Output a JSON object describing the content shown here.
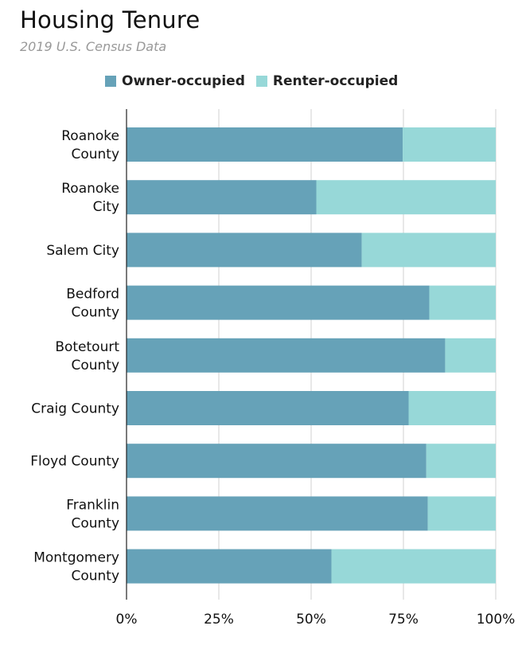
{
  "title": "Housing Tenure",
  "subtitle": "2019 U.S. Census Data",
  "colors": {
    "owner": "#66a2b8",
    "renter": "#97d8d8",
    "grid": "#d0d0d0",
    "axis": "#222222"
  },
  "chart_data": {
    "type": "bar",
    "orientation": "horizontal",
    "stacked": true,
    "title": "Housing Tenure",
    "subtitle": "2019 U.S. Census Data",
    "categories": [
      [
        "Roanoke",
        "County"
      ],
      [
        "Roanoke",
        "City"
      ],
      [
        "Salem City"
      ],
      [
        "Bedford",
        "County"
      ],
      [
        "Botetourt",
        "County"
      ],
      [
        "Craig County"
      ],
      [
        "Floyd County"
      ],
      [
        "Franklin",
        "County"
      ],
      [
        "Montgomery",
        "County"
      ]
    ],
    "series": [
      {
        "name": "Owner-occupied",
        "color": "#66a2b8",
        "values": [
          74.8,
          51.4,
          63.7,
          82.0,
          86.3,
          76.4,
          81.2,
          81.6,
          55.5
        ]
      },
      {
        "name": "Renter-occupied",
        "color": "#97d8d8",
        "values": [
          25.2,
          48.6,
          36.3,
          18.0,
          13.7,
          23.6,
          18.8,
          18.4,
          44.5
        ]
      }
    ],
    "xlim": [
      0,
      100
    ],
    "xticks": [
      0,
      25,
      50,
      75,
      100
    ],
    "xtick_labels": [
      "0%",
      "25%",
      "50%",
      "75%",
      "100%"
    ],
    "grid": true,
    "legend_position": "top"
  }
}
